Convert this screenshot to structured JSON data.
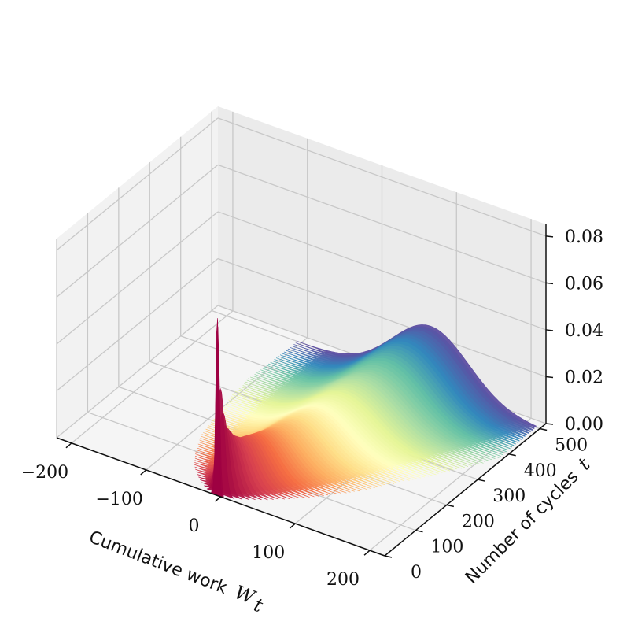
{
  "chart_data": {
    "type": "3d-bar-surface",
    "xlabel": "Cumulative work",
    "xlabel_var": "W",
    "xlabel_sub": "t",
    "ylabel": "Number of cycles",
    "ylabel_var": "t",
    "zlabel": "",
    "xlim": [
      -220,
      220
    ],
    "ylim": [
      0,
      520
    ],
    "zlim": [
      0,
      0.085
    ],
    "x_ticks": [
      -200,
      -100,
      0,
      100,
      200
    ],
    "x_tick_labels": [
      "−200",
      "−100",
      "0",
      "100",
      "200"
    ],
    "y_ticks": [
      0,
      100,
      200,
      300,
      400,
      500
    ],
    "y_tick_labels": [
      "0",
      "100",
      "200",
      "300",
      "400",
      "500"
    ],
    "z_ticks": [
      0.0,
      0.02,
      0.04,
      0.06,
      0.08
    ],
    "z_tick_labels": [
      "0.00",
      "0.02",
      "0.04",
      "0.06",
      "0.08"
    ],
    "colormap": "Spectral",
    "colormap_stops": [
      "#9e0142",
      "#d53e4f",
      "#f46d43",
      "#fdae61",
      "#fee08b",
      "#ffffbf",
      "#e6f598",
      "#abdda4",
      "#66c2a5",
      "#3288bd",
      "#5e4fa2"
    ],
    "grid": true,
    "series": [
      {
        "t": 1,
        "mean": -5,
        "std": 2,
        "peak": 0.078
      },
      {
        "t": 5,
        "mean": -4,
        "std": 4,
        "peak": 0.055
      },
      {
        "t": 10,
        "mean": -3,
        "std": 6,
        "peak": 0.038
      },
      {
        "t": 20,
        "mean": -2,
        "std": 9,
        "peak": 0.028
      },
      {
        "t": 40,
        "mean": 0,
        "std": 14,
        "peak": 0.022
      },
      {
        "t": 60,
        "mean": 3,
        "std": 18,
        "peak": 0.019
      },
      {
        "t": 80,
        "mean": 6,
        "std": 21,
        "peak": 0.018
      },
      {
        "t": 100,
        "mean": 9,
        "std": 24,
        "peak": 0.017
      },
      {
        "t": 125,
        "mean": 13,
        "std": 27,
        "peak": 0.016
      },
      {
        "t": 150,
        "mean": 17,
        "std": 30,
        "peak": 0.015
      },
      {
        "t": 175,
        "mean": 21,
        "std": 32,
        "peak": 0.015
      },
      {
        "t": 200,
        "mean": 25,
        "std": 34,
        "peak": 0.015
      },
      {
        "t": 225,
        "mean": 29,
        "std": 36,
        "peak": 0.015
      },
      {
        "t": 250,
        "mean": 33,
        "std": 38,
        "peak": 0.015
      },
      {
        "t": 275,
        "mean": 37,
        "std": 40,
        "peak": 0.015
      },
      {
        "t": 300,
        "mean": 41,
        "std": 42,
        "peak": 0.016
      },
      {
        "t": 325,
        "mean": 45,
        "std": 43,
        "peak": 0.017
      },
      {
        "t": 350,
        "mean": 49,
        "std": 45,
        "peak": 0.018
      },
      {
        "t": 375,
        "mean": 54,
        "std": 46,
        "peak": 0.019
      },
      {
        "t": 400,
        "mean": 58,
        "std": 47,
        "peak": 0.021
      },
      {
        "t": 425,
        "mean": 62,
        "std": 48,
        "peak": 0.023
      },
      {
        "t": 450,
        "mean": 66,
        "std": 49,
        "peak": 0.025
      },
      {
        "t": 475,
        "mean": 70,
        "std": 50,
        "peak": 0.026
      },
      {
        "t": 500,
        "mean": 74,
        "std": 51,
        "peak": 0.027
      }
    ]
  }
}
